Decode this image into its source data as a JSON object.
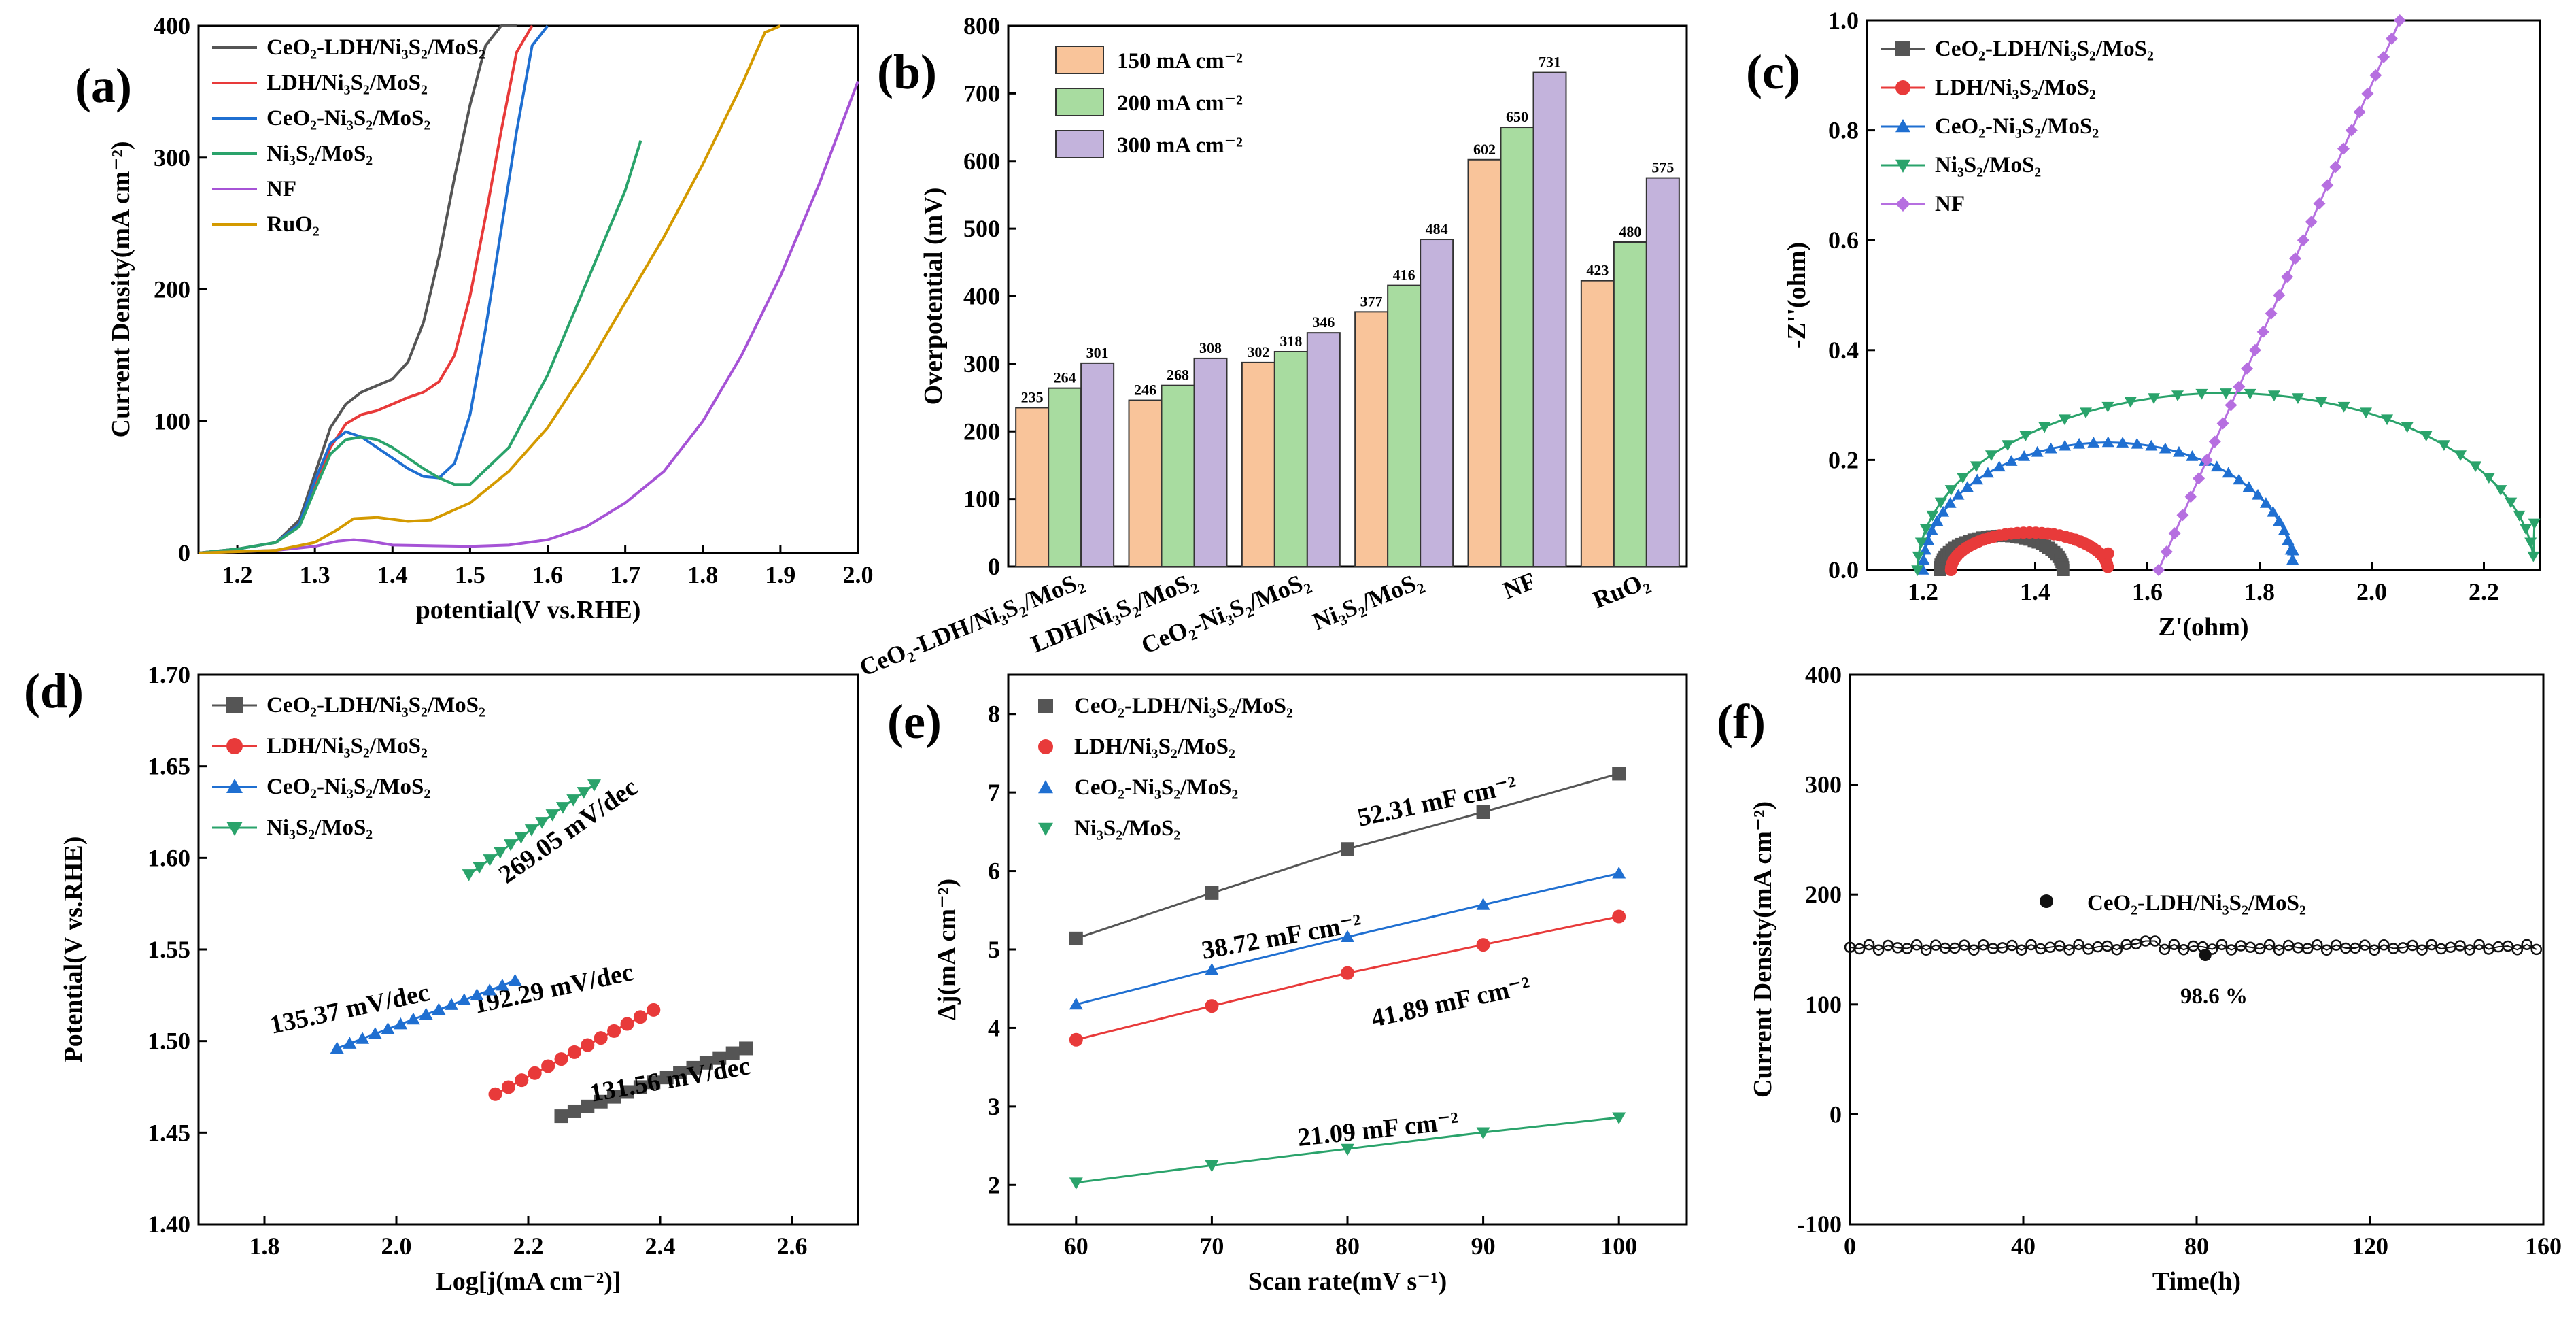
{
  "figure": {
    "panels": [
      "(a)",
      "(b)",
      "(c)",
      "(d)",
      "(e)",
      "(f)"
    ]
  },
  "chart_data": [
    {
      "id": "a",
      "type": "line",
      "label": "(a)",
      "xlabel": "potential(V vs.RHE)",
      "ylabel": "Current Density(mA cm⁻²)",
      "xlim": [
        1.15,
        2.0
      ],
      "ylim": [
        0,
        400
      ],
      "xticks": [
        "1.2",
        "1.3",
        "1.4",
        "1.5",
        "1.6",
        "1.7",
        "1.8",
        "1.9",
        "2.0"
      ],
      "xtick_values": [
        1.2,
        1.3,
        1.4,
        1.5,
        1.6,
        1.7,
        1.8,
        1.9,
        2.0
      ],
      "yticks": [
        "0",
        "100",
        "200",
        "300",
        "400"
      ],
      "ytick_values": [
        0,
        100,
        200,
        300,
        400
      ],
      "series": [
        {
          "name": "CeO₂-LDH/Ni₃S₂/MoS₂",
          "color": "#555555",
          "x": [
            1.15,
            1.2,
            1.25,
            1.28,
            1.3,
            1.32,
            1.34,
            1.36,
            1.38,
            1.4,
            1.42,
            1.44,
            1.46,
            1.48,
            1.5,
            1.52,
            1.54,
            1.56
          ],
          "y": [
            0,
            3,
            8,
            25,
            60,
            95,
            113,
            122,
            127,
            132,
            145,
            175,
            225,
            285,
            340,
            385,
            400,
            400
          ]
        },
        {
          "name": "LDH/Ni₃S₂/MoS₂",
          "color": "#e83a3a",
          "x": [
            1.15,
            1.2,
            1.25,
            1.28,
            1.3,
            1.32,
            1.34,
            1.36,
            1.38,
            1.4,
            1.42,
            1.44,
            1.46,
            1.48,
            1.5,
            1.52,
            1.54,
            1.56,
            1.58
          ],
          "y": [
            0,
            3,
            8,
            22,
            50,
            80,
            98,
            105,
            108,
            113,
            118,
            122,
            130,
            150,
            195,
            255,
            320,
            380,
            400
          ]
        },
        {
          "name": "CeO₂-Ni₃S₂/MoS₂",
          "color": "#1f6fd1",
          "x": [
            1.15,
            1.2,
            1.25,
            1.28,
            1.3,
            1.32,
            1.34,
            1.36,
            1.38,
            1.4,
            1.42,
            1.44,
            1.46,
            1.48,
            1.5,
            1.52,
            1.54,
            1.56,
            1.58,
            1.6
          ],
          "y": [
            0,
            3,
            8,
            22,
            55,
            83,
            92,
            88,
            80,
            72,
            64,
            58,
            57,
            68,
            105,
            170,
            245,
            320,
            385,
            400
          ]
        },
        {
          "name": "Ni₃S₂/MoS₂",
          "color": "#2aa36b",
          "x": [
            1.15,
            1.2,
            1.25,
            1.28,
            1.3,
            1.32,
            1.34,
            1.36,
            1.38,
            1.4,
            1.42,
            1.44,
            1.46,
            1.48,
            1.5,
            1.55,
            1.6,
            1.65,
            1.7,
            1.72
          ],
          "y": [
            0,
            3,
            8,
            20,
            48,
            75,
            86,
            88,
            86,
            80,
            72,
            64,
            57,
            52,
            52,
            80,
            135,
            205,
            275,
            313
          ]
        },
        {
          "name": "NF",
          "color": "#a653d6",
          "x": [
            1.15,
            1.25,
            1.3,
            1.33,
            1.35,
            1.37,
            1.4,
            1.5,
            1.55,
            1.6,
            1.65,
            1.7,
            1.75,
            1.8,
            1.85,
            1.9,
            1.95,
            2.0
          ],
          "y": [
            0,
            2,
            5,
            9,
            10,
            9,
            6,
            5,
            6,
            10,
            20,
            38,
            62,
            100,
            150,
            210,
            280,
            358
          ]
        },
        {
          "name": "RuO₂",
          "color": "#d49a00",
          "x": [
            1.15,
            1.25,
            1.3,
            1.33,
            1.35,
            1.38,
            1.42,
            1.45,
            1.5,
            1.55,
            1.6,
            1.65,
            1.7,
            1.75,
            1.8,
            1.85,
            1.88,
            1.9
          ],
          "y": [
            0,
            2,
            8,
            18,
            26,
            27,
            24,
            25,
            38,
            62,
            95,
            140,
            190,
            240,
            295,
            355,
            395,
            400
          ]
        }
      ]
    },
    {
      "id": "b",
      "type": "bar",
      "label": "(b)",
      "ylabel": "Overpotential (mV)",
      "ylim": [
        0,
        800
      ],
      "yticks": [
        "0",
        "100",
        "200",
        "300",
        "400",
        "500",
        "600",
        "700",
        "800"
      ],
      "ytick_values": [
        0,
        100,
        200,
        300,
        400,
        500,
        600,
        700,
        800
      ],
      "categories": [
        "CeO₂-LDH/Ni₃S₂/MoS₂",
        "LDH/Ni₃S₂/MoS₂",
        "CeO₂-Ni₃S₂/MoS₂",
        "Ni₃S₂/MoS₂",
        "NF",
        "RuO₂"
      ],
      "series": [
        {
          "name": "150 mA cm⁻²",
          "color": "#f9c49a",
          "values": [
            235,
            246,
            302,
            377,
            602,
            423
          ]
        },
        {
          "name": "200 mA cm⁻²",
          "color": "#a8dca0",
          "values": [
            264,
            268,
            318,
            416,
            650,
            480
          ]
        },
        {
          "name": "300 mA cm⁻²",
          "color": "#c3b3dc",
          "values": [
            301,
            308,
            346,
            484,
            731,
            575
          ]
        }
      ]
    },
    {
      "id": "c",
      "type": "scatter",
      "label": "(c)",
      "xlabel": "Z'(ohm)",
      "ylabel": "-Z''(ohm)",
      "xlim": [
        1.1,
        2.3
      ],
      "ylim": [
        0,
        1.0
      ],
      "xticks": [
        "1.2",
        "1.4",
        "1.6",
        "1.8",
        "2.0",
        "2.2"
      ],
      "xtick_values": [
        1.2,
        1.4,
        1.6,
        1.8,
        2.0,
        2.2
      ],
      "yticks": [
        "0.0",
        "0.2",
        "0.4",
        "0.6",
        "0.8",
        "1.0"
      ],
      "ytick_values": [
        0,
        0.2,
        0.4,
        0.6,
        0.8,
        1.0
      ],
      "series": [
        {
          "name": "CeO₂-LDH/Ni₃S₂/MoS₂",
          "color": "#555555",
          "marker": "square",
          "shape": "arc",
          "r0": 1.23,
          "r1": 1.45,
          "height": 0.062
        },
        {
          "name": "LDH/Ni₃S₂/MoS₂",
          "color": "#e83a3a",
          "marker": "circle",
          "shape": "arc",
          "r0": 1.25,
          "r1": 1.53,
          "height": 0.068,
          "tail_to": 0.03
        },
        {
          "name": "CeO₂-Ni₃S₂/MoS₂",
          "color": "#1f6fd1",
          "marker": "triangle-up",
          "shape": "arc",
          "r0": 1.2,
          "r1": 1.86,
          "height": 0.232,
          "tail_to": 0.035
        },
        {
          "name": "Ni₃S₂/MoS₂",
          "color": "#2aa36b",
          "marker": "triangle-down",
          "shape": "arc",
          "r0": 1.19,
          "r1": 2.29,
          "height": 0.322,
          "tail_to": 0.085
        },
        {
          "name": "NF",
          "color": "#b66fe0",
          "marker": "diamond",
          "shape": "line",
          "x0": 1.62,
          "y0": 0.0,
          "x1": 2.05,
          "y1": 1.0
        }
      ]
    },
    {
      "id": "d",
      "type": "scatter",
      "label": "(d)",
      "xlabel": "Log[j(mA cm⁻²)]",
      "ylabel": "Potential(V vs.RHE)",
      "xlim": [
        1.7,
        2.7
      ],
      "ylim": [
        1.4,
        1.7
      ],
      "xticks": [
        "1.8",
        "2.0",
        "2.2",
        "2.4",
        "2.6"
      ],
      "xtick_values": [
        1.8,
        2.0,
        2.2,
        2.4,
        2.6
      ],
      "yticks": [
        "1.40",
        "1.45",
        "1.50",
        "1.55",
        "1.60",
        "1.65",
        "1.70"
      ],
      "ytick_values": [
        1.4,
        1.45,
        1.5,
        1.55,
        1.6,
        1.65,
        1.7
      ],
      "series": [
        {
          "name": "CeO₂-LDH/Ni₃S₂/MoS₂",
          "color": "#555555",
          "marker": "square",
          "x0": 2.25,
          "x1": 2.53,
          "y0": 1.459,
          "y1": 1.496,
          "n": 15,
          "slope_label": "131.56 mV/dec",
          "slope_color": "#555555"
        },
        {
          "name": "LDH/Ni₃S₂/MoS₂",
          "color": "#e83a3a",
          "marker": "circle",
          "x0": 2.15,
          "x1": 2.39,
          "y0": 1.471,
          "y1": 1.517,
          "n": 13,
          "slope_label": "192.29 mV/dec",
          "slope_color": "#e83a3a"
        },
        {
          "name": "CeO₂-Ni₃S₂/MoS₂",
          "color": "#1f6fd1",
          "marker": "triangle-up",
          "x0": 1.91,
          "x1": 2.18,
          "y0": 1.496,
          "y1": 1.533,
          "n": 15,
          "slope_label": "135.37 mV/dec",
          "slope_color": "#1f6fd1"
        },
        {
          "name": "Ni₃S₂/MoS₂",
          "color": "#2aa36b",
          "marker": "triangle-down",
          "x0": 2.11,
          "x1": 2.3,
          "y0": 1.591,
          "y1": 1.64,
          "n": 13,
          "slope_label": "269.05 mV/dec",
          "slope_color": "#2aa36b"
        }
      ]
    },
    {
      "id": "e",
      "type": "scatter",
      "label": "(e)",
      "xlabel": "Scan rate(mV s⁻¹)",
      "ylabel": "Δj(mA cm⁻²)",
      "xlim": [
        55,
        105
      ],
      "ylim": [
        1.5,
        8.5
      ],
      "xticks": [
        "60",
        "70",
        "80",
        "90",
        "100"
      ],
      "xtick_values": [
        60,
        70,
        80,
        90,
        100
      ],
      "yticks": [
        "2",
        "3",
        "4",
        "5",
        "6",
        "7",
        "8"
      ],
      "ytick_values": [
        2,
        3,
        4,
        5,
        6,
        7,
        8
      ],
      "x": [
        60,
        70,
        80,
        90,
        100
      ],
      "series": [
        {
          "name": "CeO₂-LDH/Ni₃S₂/MoS₂",
          "color": "#555555",
          "marker": "square",
          "values": [
            5.14,
            5.72,
            6.28,
            6.75,
            7.24
          ],
          "slope_label": "52.31 mF cm⁻²",
          "slope_color": "#555555"
        },
        {
          "name": "LDH/Ni₃S₂/MoS₂",
          "color": "#e83a3a",
          "marker": "circle",
          "values": [
            3.85,
            4.28,
            4.7,
            5.06,
            5.42
          ],
          "slope_label": "38.72 mF cm⁻²",
          "slope_color": "#e83a3a"
        },
        {
          "name": "CeO₂-Ni₃S₂/MoS₂",
          "color": "#1f6fd1",
          "marker": "triangle-up",
          "values": [
            4.3,
            4.74,
            5.16,
            5.57,
            5.97
          ],
          "slope_label": "41.89 mF cm⁻²",
          "slope_color": "#1111dd"
        },
        {
          "name": "Ni₃S₂/MoS₂",
          "color": "#2aa36b",
          "marker": "triangle-down",
          "values": [
            2.03,
            2.25,
            2.46,
            2.67,
            2.86
          ],
          "slope_label": "21.09 mF cm⁻²",
          "slope_color": "#1f8a1f"
        }
      ]
    },
    {
      "id": "f",
      "type": "line",
      "label": "(f)",
      "xlabel": "Time(h)",
      "ylabel": "Current Density(mA cm⁻²)",
      "xlim": [
        0,
        160
      ],
      "ylim": [
        -100,
        400
      ],
      "xticks": [
        "0",
        "40",
        "80",
        "120",
        "160"
      ],
      "xtick_values": [
        0,
        40,
        80,
        120,
        160
      ],
      "yticks": [
        "-100",
        "0",
        "100",
        "200",
        "300",
        "400"
      ],
      "ytick_values": [
        -100,
        0,
        100,
        200,
        300,
        400
      ],
      "series": [
        {
          "name": "CeO₂-LDH/Ni₃S₂/MoS₂",
          "color": "#111111",
          "marker": "circle",
          "value": 152,
          "retention_label": "98.6 %"
        }
      ]
    }
  ]
}
